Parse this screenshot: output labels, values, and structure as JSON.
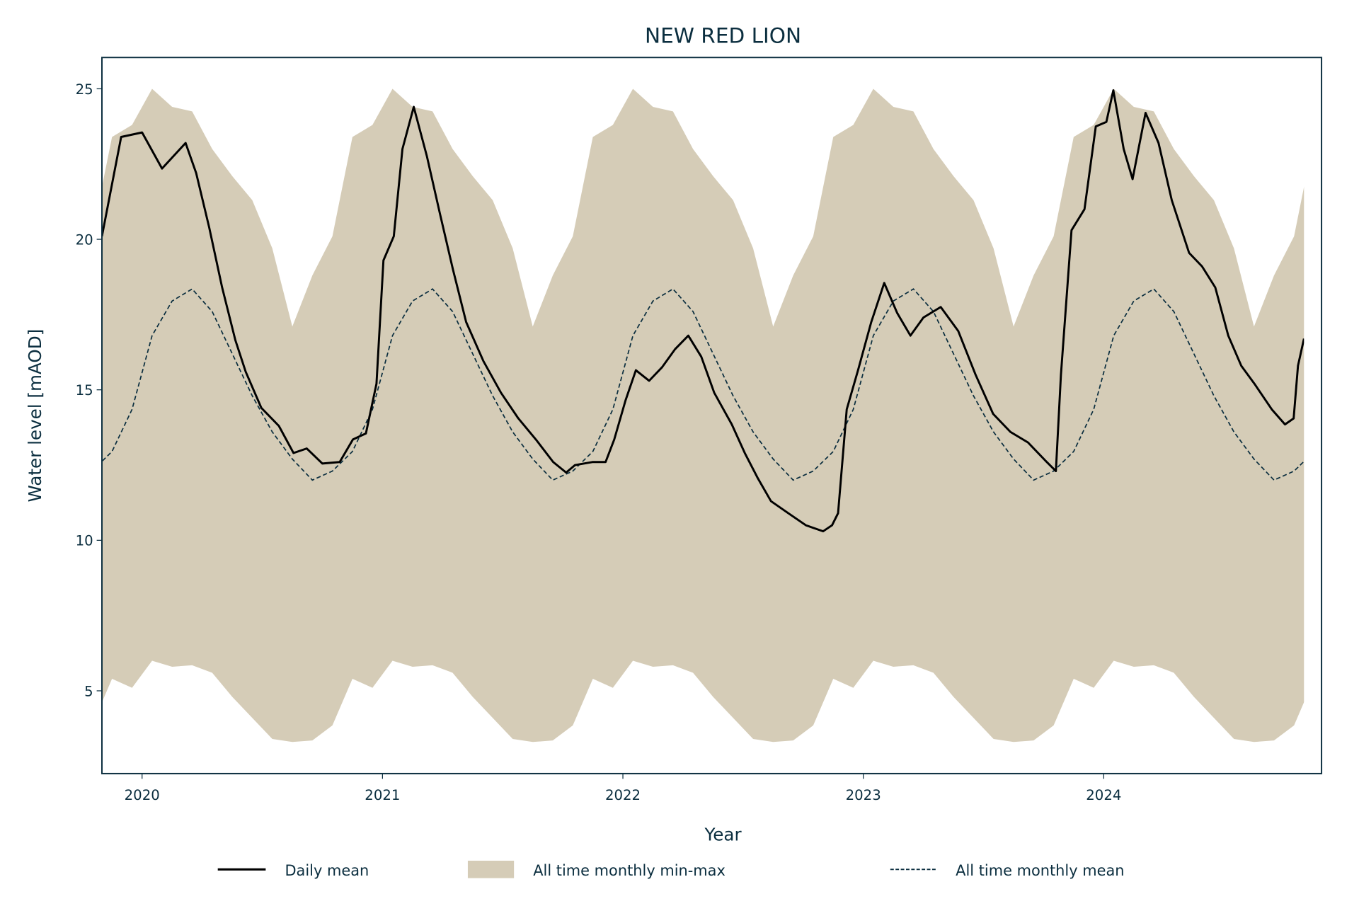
{
  "chart_data": {
    "type": "line",
    "title": "NEW RED LION",
    "xlabel": "Year",
    "ylabel": "Water level [mAOD]",
    "xlim": [
      2019.833,
      2024.906
    ],
    "ylim": [
      2.25,
      26.04
    ],
    "x_ticks": [
      2020,
      2021,
      2022,
      2023,
      2024
    ],
    "x_tick_labels": [
      "2020",
      "2021",
      "2022",
      "2023",
      "2024"
    ],
    "y_ticks": [
      5,
      10,
      15,
      20,
      25
    ],
    "y_tick_labels": [
      "5",
      "10",
      "15",
      "20",
      "25"
    ],
    "grid": false,
    "legend_placement": "bottom-center",
    "legend": [
      "Daily mean",
      "All time monthly min-max",
      "All time monthly mean"
    ],
    "colors": {
      "daily": "#000000",
      "band": "#d5ccb7",
      "mean": "#0b2e3f",
      "text": "#0b2e3f"
    },
    "data_range": [
      2019.833,
      2024.833
    ],
    "monthly_climatology": {
      "months": [
        "Jan",
        "Feb",
        "Mar",
        "Apr",
        "May",
        "Jun",
        "Jul",
        "Aug",
        "Sep",
        "Oct",
        "Nov",
        "Dec"
      ],
      "max": [
        25.0,
        24.4,
        24.25,
        23.0,
        22.1,
        21.3,
        19.7,
        17.1,
        18.8,
        20.1,
        23.4,
        23.8
      ],
      "min": [
        6.0,
        5.8,
        5.85,
        5.6,
        4.8,
        4.1,
        3.4,
        3.3,
        3.35,
        3.85,
        5.4,
        5.1
      ],
      "mean": [
        16.8,
        17.95,
        18.35,
        17.6,
        16.2,
        14.8,
        13.6,
        12.7,
        12.0,
        12.3,
        12.95,
        14.35
      ]
    },
    "daily_mean": [
      [
        2019.833,
        20.1
      ],
      [
        2019.913,
        23.4
      ],
      [
        2020.0,
        23.55
      ],
      [
        2020.083,
        22.35
      ],
      [
        2020.181,
        23.2
      ],
      [
        2020.225,
        22.2
      ],
      [
        2020.279,
        20.4
      ],
      [
        2020.333,
        18.4
      ],
      [
        2020.388,
        16.65
      ],
      [
        2020.431,
        15.6
      ],
      [
        2020.496,
        14.4
      ],
      [
        2020.569,
        13.8
      ],
      [
        2020.63,
        12.9
      ],
      [
        2020.685,
        13.05
      ],
      [
        2020.75,
        12.55
      ],
      [
        2020.822,
        12.6
      ],
      [
        2020.877,
        13.35
      ],
      [
        2020.931,
        13.55
      ],
      [
        2020.975,
        15.2
      ],
      [
        2021.004,
        19.3
      ],
      [
        2021.047,
        20.1
      ],
      [
        2021.083,
        23.0
      ],
      [
        2021.13,
        24.4
      ],
      [
        2021.185,
        22.75
      ],
      [
        2021.239,
        20.85
      ],
      [
        2021.293,
        19.0
      ],
      [
        2021.348,
        17.25
      ],
      [
        2021.42,
        15.95
      ],
      [
        2021.493,
        14.9
      ],
      [
        2021.565,
        14.05
      ],
      [
        2021.638,
        13.35
      ],
      [
        2021.71,
        12.6
      ],
      [
        2021.764,
        12.25
      ],
      [
        2021.801,
        12.5
      ],
      [
        2021.873,
        12.6
      ],
      [
        2021.928,
        12.6
      ],
      [
        2021.964,
        13.35
      ],
      [
        2022.011,
        14.65
      ],
      [
        2022.054,
        15.65
      ],
      [
        2022.109,
        15.3
      ],
      [
        2022.163,
        15.75
      ],
      [
        2022.217,
        16.35
      ],
      [
        2022.272,
        16.8
      ],
      [
        2022.326,
        16.1
      ],
      [
        2022.38,
        14.9
      ],
      [
        2022.453,
        13.85
      ],
      [
        2022.507,
        12.9
      ],
      [
        2022.562,
        12.05
      ],
      [
        2022.616,
        11.3
      ],
      [
        2022.688,
        10.9
      ],
      [
        2022.761,
        10.5
      ],
      [
        2022.833,
        10.3
      ],
      [
        2022.87,
        10.5
      ],
      [
        2022.895,
        10.9
      ],
      [
        2022.931,
        14.35
      ],
      [
        2022.978,
        15.65
      ],
      [
        2023.033,
        17.25
      ],
      [
        2023.087,
        18.55
      ],
      [
        2023.141,
        17.55
      ],
      [
        2023.196,
        16.8
      ],
      [
        2023.25,
        17.4
      ],
      [
        2023.322,
        17.75
      ],
      [
        2023.395,
        16.95
      ],
      [
        2023.467,
        15.5
      ],
      [
        2023.54,
        14.2
      ],
      [
        2023.612,
        13.6
      ],
      [
        2023.685,
        13.25
      ],
      [
        2023.757,
        12.65
      ],
      [
        2023.801,
        12.3
      ],
      [
        2023.822,
        15.5
      ],
      [
        2023.866,
        20.3
      ],
      [
        2023.92,
        21.0
      ],
      [
        2023.967,
        23.75
      ],
      [
        2024.011,
        23.9
      ],
      [
        2024.04,
        24.95
      ],
      [
        2024.083,
        23.0
      ],
      [
        2024.12,
        22.0
      ],
      [
        2024.174,
        24.2
      ],
      [
        2024.228,
        23.2
      ],
      [
        2024.283,
        21.3
      ],
      [
        2024.355,
        19.55
      ],
      [
        2024.409,
        19.1
      ],
      [
        2024.464,
        18.4
      ],
      [
        2024.518,
        16.8
      ],
      [
        2024.572,
        15.8
      ],
      [
        2024.627,
        15.2
      ],
      [
        2024.699,
        14.35
      ],
      [
        2024.754,
        13.85
      ],
      [
        2024.79,
        14.05
      ],
      [
        2024.808,
        15.8
      ],
      [
        2024.833,
        16.7
      ]
    ]
  }
}
